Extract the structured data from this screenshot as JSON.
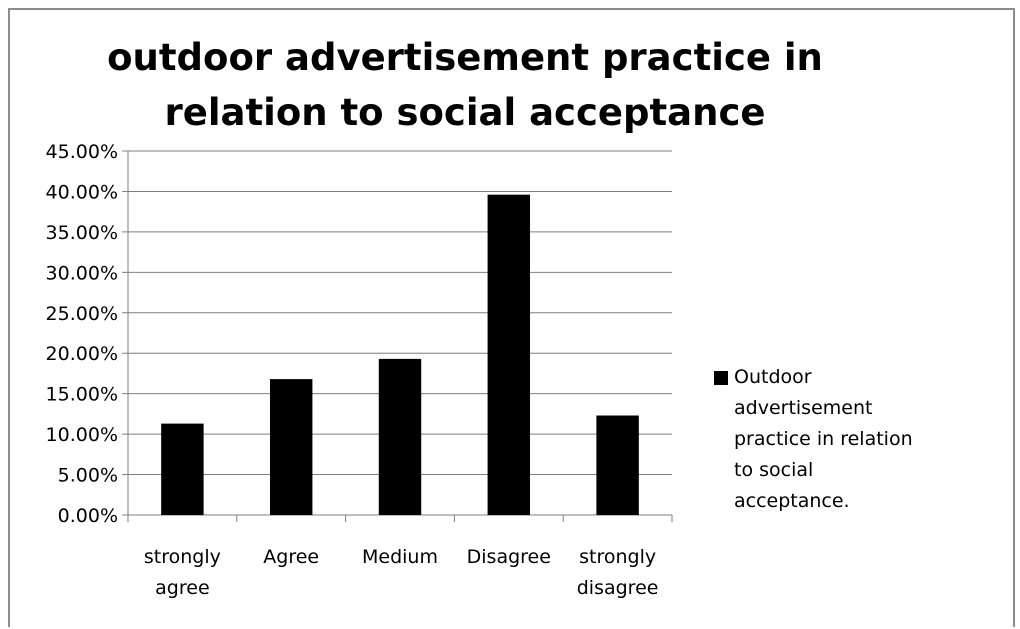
{
  "chart_data": {
    "type": "bar",
    "title": "outdoor advertisement practice  in relation to social acceptance",
    "title_lines": [
      "outdoor advertisement practice  in",
      "relation to social acceptance"
    ],
    "categories": [
      "strongly agree",
      "Agree",
      "Medium",
      "Disagree",
      "strongly disagree"
    ],
    "category_lines": [
      [
        "strongly",
        "agree"
      ],
      [
        "Agree"
      ],
      [
        "Medium"
      ],
      [
        "Disagree"
      ],
      [
        "strongly",
        "disagree"
      ]
    ],
    "series": [
      {
        "name": "Outdoor advertisement practice in relation to social acceptance.",
        "values": [
          0.113,
          0.168,
          0.193,
          0.396,
          0.123
        ],
        "color": "#000000"
      }
    ],
    "ylim": [
      0,
      0.45
    ],
    "ytick_step": 0.05,
    "ytick_labels": [
      "0.00%",
      "5.00%",
      "10.00%",
      "15.00%",
      "20.00%",
      "25.00%",
      "30.00%",
      "35.00%",
      "40.00%",
      "45.00%"
    ],
    "xlabel": "",
    "ylabel": "",
    "grid": true,
    "legend_position": "right",
    "legend_lines": [
      "Outdoor",
      "advertisement",
      "practice in relation",
      "to social",
      "acceptance."
    ]
  }
}
